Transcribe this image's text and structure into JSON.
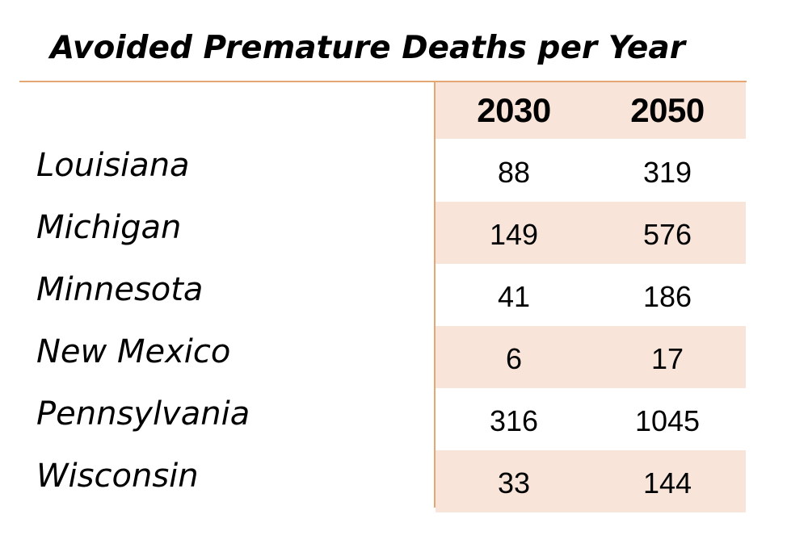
{
  "colors": {
    "accent_rule": "#e4a774",
    "shade": "#f8e4d8",
    "text": "#000000"
  },
  "chart_data": {
    "type": "table",
    "title": "Avoided Premature Deaths per Year",
    "columns": [
      "2030",
      "2050"
    ],
    "rows": [
      {
        "label": "Louisiana",
        "values": [
          "88",
          "319"
        ]
      },
      {
        "label": "Michigan",
        "values": [
          "149",
          "576"
        ]
      },
      {
        "label": "Minnesota",
        "values": [
          "41",
          "186"
        ]
      },
      {
        "label": "New Mexico",
        "values": [
          "6",
          "17"
        ]
      },
      {
        "label": "Pennsylvania",
        "values": [
          "316",
          "1045"
        ]
      },
      {
        "label": "Wisconsin",
        "values": [
          "33",
          "144"
        ]
      }
    ]
  }
}
